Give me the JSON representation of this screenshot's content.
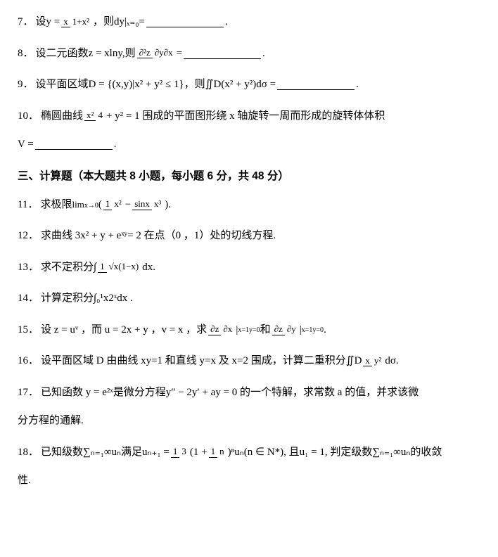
{
  "problems": [
    {
      "num": "7．",
      "parts": [
        "设 ",
        "y = ",
        {
          "frac": [
            "x",
            "1+x²"
          ]
        },
        " ，则 ",
        "dy|",
        "ₓ₌₀",
        " =",
        {
          "blank": true
        },
        "."
      ]
    },
    {
      "num": "8．",
      "parts": [
        "设二元函数 ",
        "z = x",
        "ln",
        "y,",
        "则",
        {
          "frac": [
            "∂²z",
            "∂y∂x"
          ]
        },
        "=",
        {
          "blank": true
        },
        "."
      ]
    },
    {
      "num": "9．",
      "parts": [
        "设平面区域 ",
        "D = {(x,y)|x² + y² ≤ 1}",
        " ，则 ",
        "∬",
        "D",
        " (x² + y²)dσ =",
        {
          "blank": true
        },
        "."
      ]
    },
    {
      "num": "10．",
      "parts": [
        "椭圆曲线",
        {
          "frac": [
            "x²",
            "4"
          ]
        },
        "+ y² = 1 围成的平面图形绕 x 轴旋转一周而形成的旋转体体积",
        {
          "newl": true
        },
        "V =",
        {
          "blank": true
        },
        "."
      ]
    }
  ],
  "section_title": "三、计算题（本大题共 8 小题，每小题 6 分，共 48 分）",
  "problems2": [
    {
      "num": "11．",
      "parts": [
        "求极限",
        {
          "lim": [
            "lim",
            "x→0"
          ]
        },
        " (",
        {
          "frac": [
            "1",
            "x²"
          ]
        },
        " − ",
        {
          "frac": [
            "sinx",
            "x³"
          ]
        },
        ")."
      ]
    },
    {
      "num": "12．",
      "parts": [
        "求曲线 3x² + y + e",
        "ˣʸ",
        " = 2 在点（0 ，1）处的切线方程."
      ]
    },
    {
      "num": "13．",
      "parts": [
        "求不定积分",
        "∫",
        {
          "frac": [
            "1",
            "√x(1−x)"
          ]
        },
        "dx."
      ]
    },
    {
      "num": "14．",
      "parts": [
        "计算定积分",
        "∫",
        "₀¹",
        " x2ˣdx ."
      ]
    },
    {
      "num": "15．",
      "parts": [
        "设 z = uᵛ ，而 u = 2x + y ，v = x ，求",
        {
          "frac": [
            "∂z",
            "∂x"
          ]
        },
        "|",
        {
          "stack": [
            "x=1",
            "y=0"
          ]
        },
        "和",
        {
          "frac": [
            "∂z",
            "∂y"
          ]
        },
        "|",
        {
          "stack": [
            "x=1",
            "y=0"
          ]
        },
        "."
      ]
    },
    {
      "num": "16．",
      "parts": [
        "设平面区域 D 由曲线 xy=1 和直线 y=x 及 x=2 围成，计算二重积分",
        "∬",
        "D",
        {
          "frac": [
            "x",
            "y²"
          ]
        },
        " dσ."
      ]
    },
    {
      "num": "17．",
      "parts": [
        "已知函数 y = e²ˣ是微分方程y″ − 2y′ + ay = 0 的一个特解，求常数 a 的值，并求该微",
        {
          "newl": true
        },
        "分方程的通解."
      ]
    },
    {
      "num": "18．",
      "parts": [
        "已知级数∑",
        "ₙ₌₁",
        "∞",
        " uₙ满足uₙ₊₁ = ",
        {
          "frac": [
            "1",
            "3"
          ]
        },
        "(1 + ",
        {
          "frac": [
            "1",
            "n"
          ]
        },
        ")ⁿuₙ(n ∈ N*), 且u₁ = 1, 判定级数∑",
        "ₙ₌₁",
        "∞",
        " uₙ的收敛",
        {
          "newl": true
        },
        "性."
      ]
    }
  ]
}
